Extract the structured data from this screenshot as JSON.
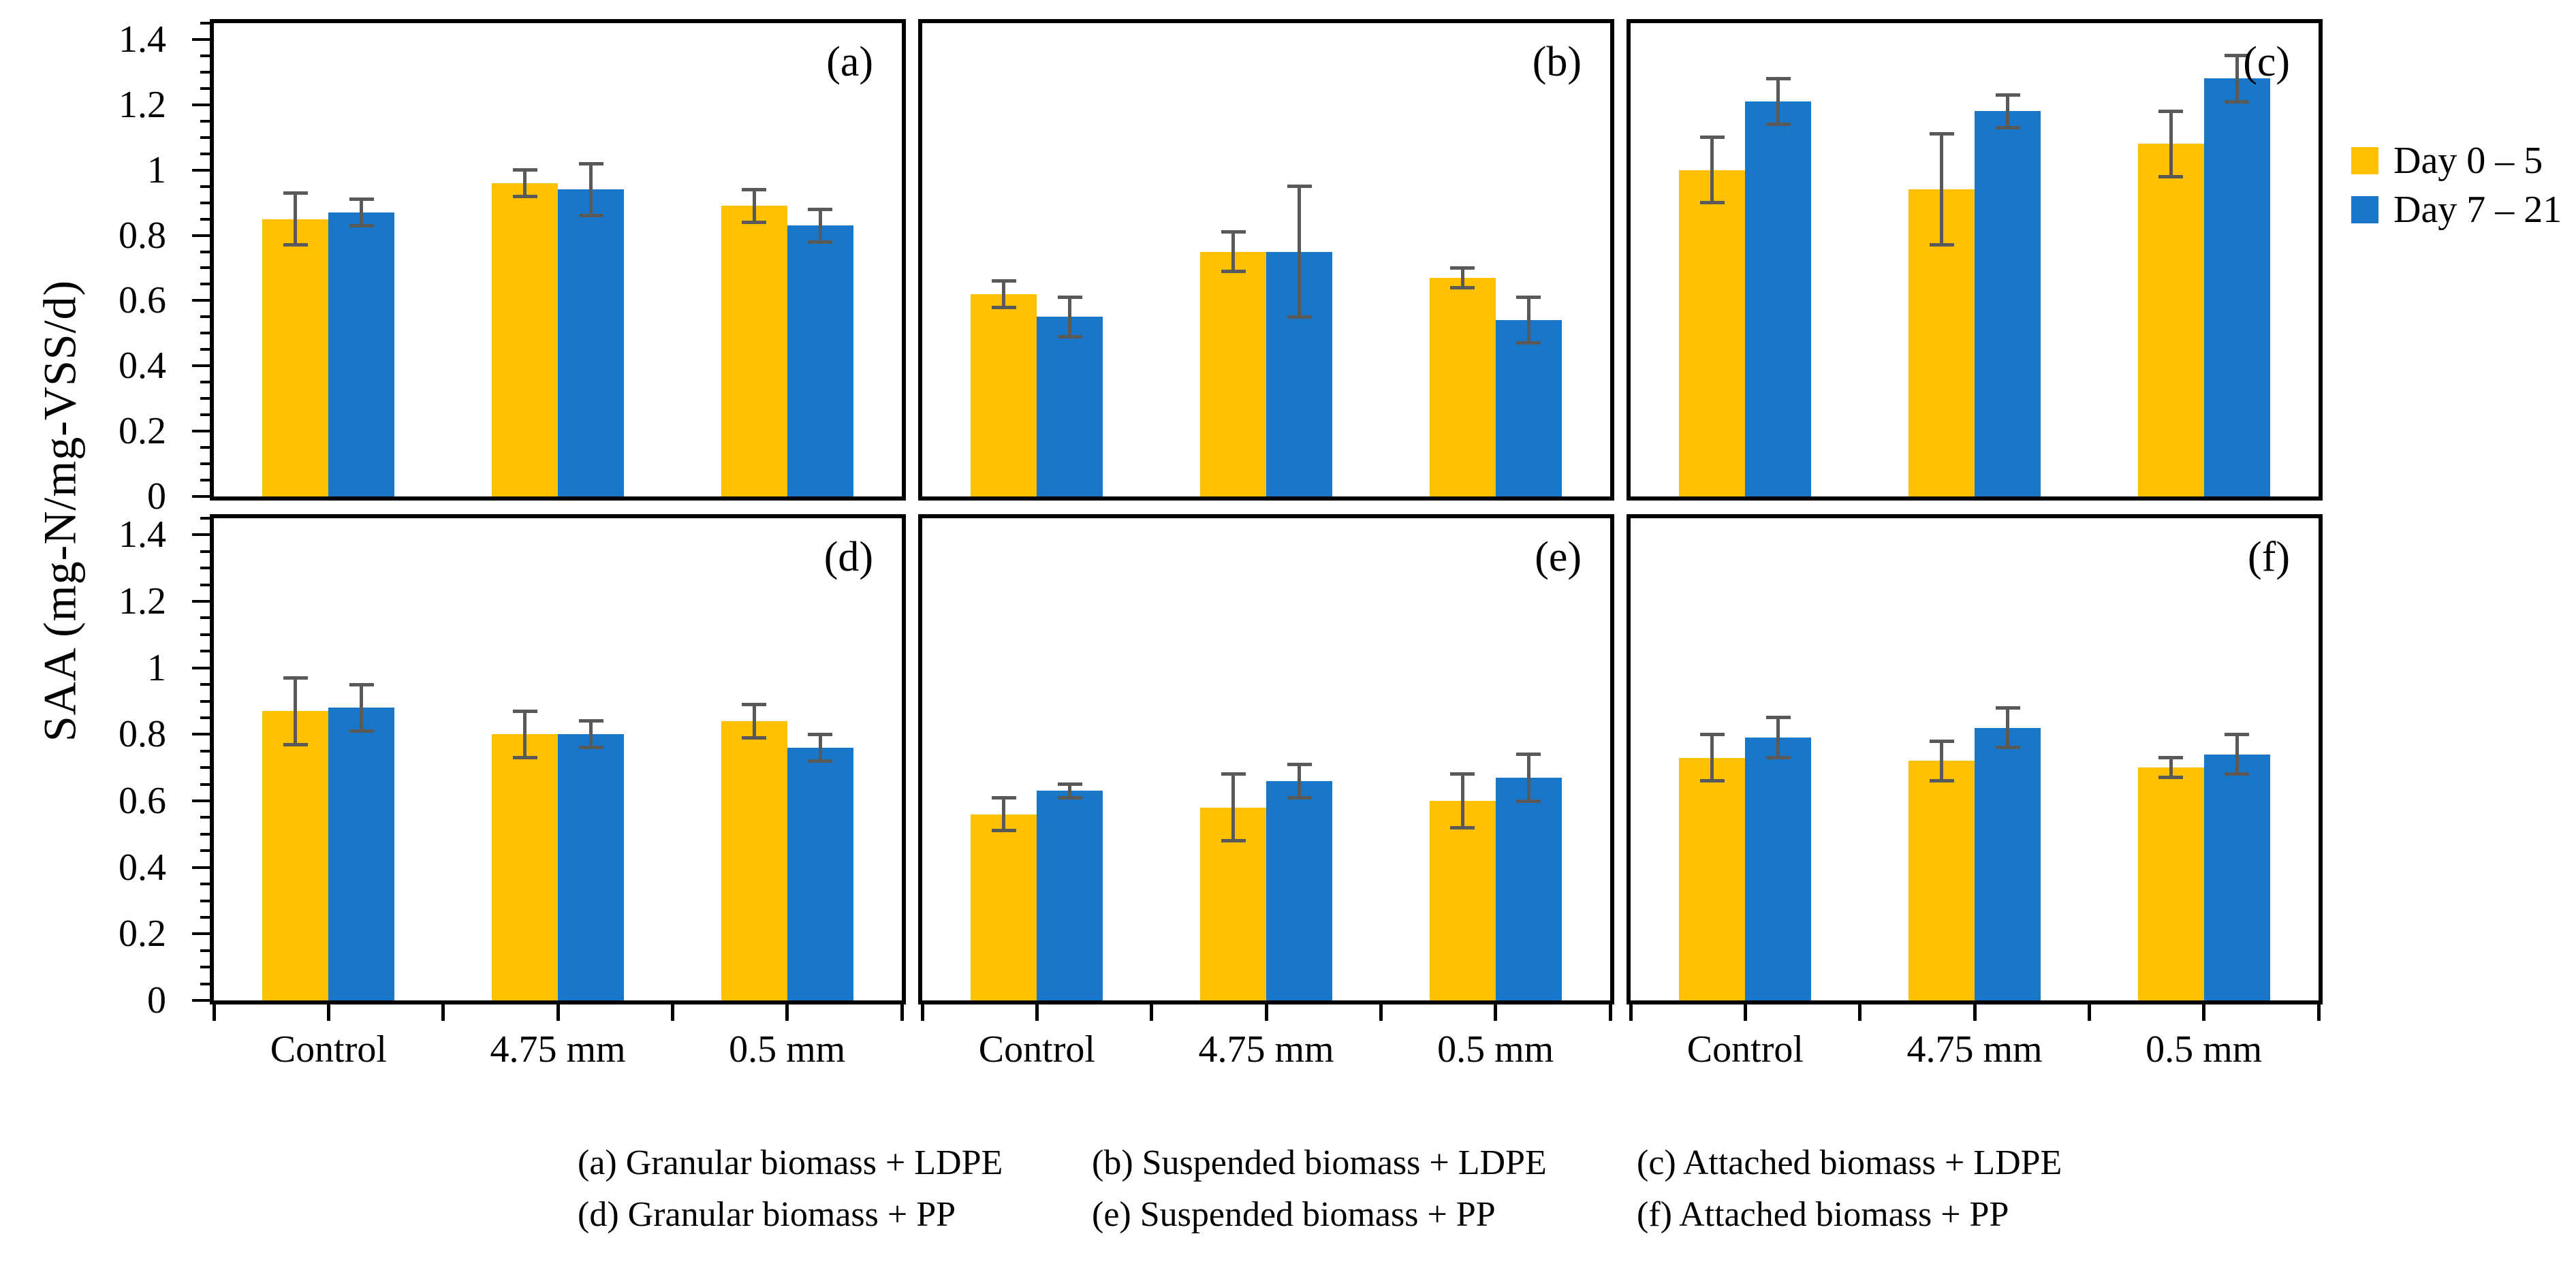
{
  "figure": {
    "y_axis_label": "SAA (mg-N/mg-VSS/d)"
  },
  "chart_data": {
    "type": "bar",
    "ylabel": "SAA (mg-N/mg-VSS/d)",
    "xlabel": "",
    "ylim": [
      0,
      1.45
    ],
    "y_major_ticks": [
      0,
      0.2,
      0.4,
      0.6,
      0.8,
      1,
      1.2,
      1.4
    ],
    "y_tick_labels": [
      "0",
      "0.2",
      "0.4",
      "0.6",
      "0.8",
      "1",
      "1.2",
      "1.4"
    ],
    "y_minor_step": 0.05,
    "grid": false,
    "legend_position": "right-of-top-right-panel",
    "categories": [
      "Control",
      "4.75 mm",
      "0.5 mm"
    ],
    "series_names": [
      "Day 0 – 5",
      "Day 7 – 21"
    ],
    "colors": {
      "day0_5": "#FFC000",
      "day7_21": "#1877C9",
      "error_bar": "#595959",
      "frame": "#000000"
    },
    "panels": [
      {
        "letter": "(a)",
        "caption": "(a) Granular biomass + LDPE",
        "series": [
          {
            "name": "Day 0 – 5",
            "values": [
              0.85,
              0.96,
              0.89
            ],
            "errors": [
              0.08,
              0.04,
              0.05
            ]
          },
          {
            "name": "Day 7 – 21",
            "values": [
              0.87,
              0.94,
              0.83
            ],
            "errors": [
              0.04,
              0.08,
              0.05
            ]
          }
        ]
      },
      {
        "letter": "(b)",
        "caption": "(b) Suspended biomass + LDPE",
        "series": [
          {
            "name": "Day 0 – 5",
            "values": [
              0.62,
              0.75,
              0.67
            ],
            "errors": [
              0.04,
              0.06,
              0.03
            ]
          },
          {
            "name": "Day 7 – 21",
            "values": [
              0.55,
              0.75,
              0.54
            ],
            "errors": [
              0.06,
              0.2,
              0.07
            ]
          }
        ]
      },
      {
        "letter": "(c)",
        "caption": "(c) Attached biomass + LDPE",
        "series": [
          {
            "name": "Day 0 – 5",
            "values": [
              1.0,
              0.94,
              1.08
            ],
            "errors": [
              0.1,
              0.17,
              0.1
            ]
          },
          {
            "name": "Day 7 – 21",
            "values": [
              1.21,
              1.18,
              1.28
            ],
            "errors": [
              0.07,
              0.05,
              0.07
            ]
          }
        ]
      },
      {
        "letter": "(d)",
        "caption": "(d) Granular biomass + PP",
        "series": [
          {
            "name": "Day 0 – 5",
            "values": [
              0.87,
              0.8,
              0.84
            ],
            "errors": [
              0.1,
              0.07,
              0.05
            ]
          },
          {
            "name": "Day 7 – 21",
            "values": [
              0.88,
              0.8,
              0.76
            ],
            "errors": [
              0.07,
              0.04,
              0.04
            ]
          }
        ]
      },
      {
        "letter": "(e)",
        "caption": "(e) Suspended biomass + PP",
        "series": [
          {
            "name": "Day 0 – 5",
            "values": [
              0.56,
              0.58,
              0.6
            ],
            "errors": [
              0.05,
              0.1,
              0.08
            ]
          },
          {
            "name": "Day 7 – 21",
            "values": [
              0.63,
              0.66,
              0.67
            ],
            "errors": [
              0.02,
              0.05,
              0.07
            ]
          }
        ]
      },
      {
        "letter": "(f)",
        "caption": "(f) Attached biomass + PP",
        "series": [
          {
            "name": "Day 0 – 5",
            "values": [
              0.73,
              0.72,
              0.7
            ],
            "errors": [
              0.07,
              0.06,
              0.03
            ]
          },
          {
            "name": "Day 7 – 21",
            "values": [
              0.79,
              0.82,
              0.74
            ],
            "errors": [
              0.06,
              0.06,
              0.06
            ]
          }
        ]
      }
    ]
  },
  "legend": {
    "items": [
      {
        "label": "Day 0 – 5",
        "color": "#FFC000"
      },
      {
        "label": "Day 7 – 21",
        "color": "#1877C9"
      }
    ]
  },
  "captions": {
    "row1": [
      "(a) Granular biomass + LDPE",
      "(b) Suspended biomass + LDPE",
      "(c) Attached biomass + LDPE"
    ],
    "row2": [
      "(d) Granular biomass + PP",
      "(e) Suspended biomass + PP",
      "(f) Attached biomass + PP"
    ]
  }
}
